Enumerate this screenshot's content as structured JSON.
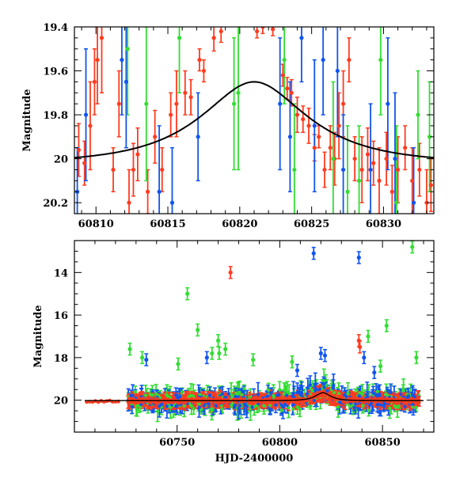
{
  "chart_data": [
    {
      "type": "scatter",
      "panel": "top",
      "title": "",
      "xlabel": "",
      "ylabel": "Magnitude",
      "xlim": [
        60808.5,
        60833.5
      ],
      "ylim": [
        20.25,
        19.4
      ],
      "y_inverted": true,
      "xticks": [
        60810,
        60815,
        60820,
        60825,
        60830
      ],
      "yticks": [
        19.4,
        19.6,
        19.8,
        20,
        20.2
      ],
      "grid": false,
      "colors": {
        "red": "#ff3b1f",
        "green": "#33dd33",
        "blue": "#1155ee",
        "model": "#000000"
      },
      "model_curve": {
        "name": "",
        "baseline": 20.02,
        "peak_mag": 19.65,
        "peak_time": 60821.0,
        "shape": "Paczynski",
        "tE": 6.0
      },
      "series": [
        {
          "color": "red",
          "points": [
            [
              60808.8,
              19.96,
              0.12
            ],
            [
              60809.2,
              20.02,
              0.1
            ],
            [
              60809.6,
              19.85,
              0.2
            ],
            [
              60809.9,
              19.65,
              0.15
            ],
            [
              60810.1,
              19.55,
              0.2
            ],
            [
              60810.4,
              19.45,
              0.25
            ],
            [
              60811.2,
              20.05,
              0.1
            ],
            [
              60811.6,
              19.75,
              0.15
            ],
            [
              60812.3,
              20.2,
              0.15
            ],
            [
              60812.6,
              20.05,
              0.12
            ],
            [
              60812.9,
              19.98,
              0.12
            ],
            [
              60813.6,
              20.15,
              0.1
            ],
            [
              60814.1,
              19.9,
              0.12
            ],
            [
              60814.6,
              20.05,
              0.1
            ],
            [
              60815.2,
              19.8,
              0.1
            ],
            [
              60815.6,
              19.75,
              0.15
            ],
            [
              60816.2,
              19.7,
              0.1
            ],
            [
              60816.6,
              19.72,
              0.08
            ],
            [
              60817.2,
              19.55,
              0.05
            ],
            [
              60817.5,
              19.6,
              0.05
            ],
            [
              60818.2,
              19.45,
              0.06
            ],
            [
              60818.7,
              19.42,
              0.05
            ],
            [
              60821.2,
              19.42,
              0.03
            ],
            [
              60821.6,
              19.4,
              0.03
            ],
            [
              60822.3,
              19.41,
              0.03
            ],
            [
              60823.0,
              19.62,
              0.05
            ],
            [
              60823.3,
              19.68,
              0.05
            ],
            [
              60823.6,
              19.7,
              0.06
            ],
            [
              60824.0,
              19.8,
              0.08
            ],
            [
              60824.4,
              19.82,
              0.06
            ],
            [
              60824.8,
              19.85,
              0.08
            ],
            [
              60825.2,
              19.95,
              0.06
            ],
            [
              60825.5,
              19.9,
              0.05
            ],
            [
              60825.9,
              20.05,
              0.08
            ],
            [
              60826.3,
              19.95,
              0.1
            ],
            [
              60826.6,
              20.0,
              0.12
            ],
            [
              60826.9,
              19.85,
              0.15
            ],
            [
              60827.2,
              19.75,
              0.15
            ],
            [
              60827.6,
              19.55,
              0.1
            ],
            [
              60828.0,
              20.0,
              0.1
            ],
            [
              60828.5,
              20.05,
              0.15
            ],
            [
              60828.9,
              19.98,
              0.12
            ],
            [
              60829.3,
              20.02,
              0.1
            ],
            [
              60829.7,
              20.1,
              0.15
            ],
            [
              60830.2,
              20.0,
              0.12
            ],
            [
              60830.6,
              20.15,
              0.12
            ],
            [
              60831.0,
              20.05,
              0.15
            ],
            [
              60831.5,
              19.95,
              0.1
            ],
            [
              60832.0,
              20.1,
              0.15
            ],
            [
              60832.5,
              20.05,
              0.12
            ],
            [
              60833.0,
              20.2,
              0.15
            ],
            [
              60833.3,
              20.12,
              0.12
            ]
          ]
        },
        {
          "color": "green",
          "points": [
            [
              60812.2,
              19.5,
              0.3
            ],
            [
              60813.5,
              19.75,
              0.35
            ],
            [
              60815.8,
              19.45,
              0.25
            ],
            [
              60819.6,
              19.75,
              0.3
            ],
            [
              60819.9,
              19.7,
              0.35
            ],
            [
              60823.1,
              19.55,
              0.2
            ],
            [
              60823.8,
              20.05,
              0.3
            ],
            [
              60826.5,
              20.0,
              0.35
            ],
            [
              60827.5,
              20.15,
              0.3
            ],
            [
              60828.3,
              20.1,
              0.25
            ],
            [
              60829.8,
              19.55,
              0.25
            ],
            [
              60830.9,
              20.2,
              0.35
            ],
            [
              60832.4,
              19.8,
              0.2
            ],
            [
              60833.2,
              19.9,
              0.25
            ]
          ]
        },
        {
          "color": "blue",
          "points": [
            [
              60808.7,
              20.15,
              0.2
            ],
            [
              60809.3,
              19.8,
              0.3
            ],
            [
              60811.8,
              19.55,
              0.25
            ],
            [
              60812.1,
              19.65,
              0.3
            ],
            [
              60814.4,
              20.15,
              0.3
            ],
            [
              60815.3,
              20.2,
              0.25
            ],
            [
              60817.1,
              19.9,
              0.2
            ],
            [
              60822.8,
              19.75,
              0.3
            ],
            [
              60823.5,
              19.9,
              0.25
            ],
            [
              60824.3,
              19.45,
              0.2
            ],
            [
              60825.2,
              19.85,
              0.3
            ],
            [
              60825.8,
              19.55,
              0.25
            ],
            [
              60826.8,
              19.6,
              0.3
            ],
            [
              60827.2,
              20.05,
              0.25
            ],
            [
              60829.1,
              20.05,
              0.3
            ],
            [
              60830.3,
              19.75,
              0.3
            ],
            [
              60830.8,
              20.0,
              0.3
            ],
            [
              60832.1,
              20.2,
              0.25
            ]
          ]
        }
      ]
    },
    {
      "type": "scatter",
      "panel": "bottom",
      "title": "",
      "xlabel": "HJD-2400000",
      "ylabel": "Magnitude",
      "xlim": [
        60700,
        60875
      ],
      "ylim": [
        21.5,
        12.5
      ],
      "y_inverted": true,
      "xticks": [
        60750,
        60800,
        60850
      ],
      "yticks": [
        14,
        16,
        18,
        20
      ],
      "grid": false,
      "model_curve": {
        "name": "",
        "baseline": 20.02,
        "peak_mag": 19.65,
        "peak_time": 60821.0,
        "shape": "Paczynski",
        "tE": 6.0
      },
      "outliers": [
        {
          "color": "blue",
          "x": 60816.5,
          "y": 13.1
        },
        {
          "color": "blue",
          "x": 60838.5,
          "y": 13.3
        },
        {
          "color": "green",
          "x": 60864.5,
          "y": 12.8
        },
        {
          "color": "red",
          "x": 60776.0,
          "y": 14.0
        },
        {
          "color": "green",
          "x": 60755.0,
          "y": 15.0
        },
        {
          "color": "green",
          "x": 60727.0,
          "y": 17.6
        },
        {
          "color": "green",
          "x": 60733.0,
          "y": 18.0
        },
        {
          "color": "blue",
          "x": 60735.0,
          "y": 18.1
        },
        {
          "color": "green",
          "x": 60750.5,
          "y": 18.3
        },
        {
          "color": "green",
          "x": 60760.0,
          "y": 16.7
        },
        {
          "color": "green",
          "x": 60770.0,
          "y": 17.2
        },
        {
          "color": "green",
          "x": 60770.5,
          "y": 17.8
        },
        {
          "color": "green",
          "x": 60773.5,
          "y": 17.6
        },
        {
          "color": "blue",
          "x": 60764.5,
          "y": 18.0
        },
        {
          "color": "green",
          "x": 60767.0,
          "y": 17.8
        },
        {
          "color": "green",
          "x": 60787.0,
          "y": 18.1
        },
        {
          "color": "green",
          "x": 60806.0,
          "y": 18.2
        },
        {
          "color": "blue",
          "x": 60820.0,
          "y": 17.8
        },
        {
          "color": "blue",
          "x": 60822.0,
          "y": 17.9
        },
        {
          "color": "red",
          "x": 60838.5,
          "y": 17.2
        },
        {
          "color": "red",
          "x": 60839.0,
          "y": 17.5
        },
        {
          "color": "green",
          "x": 60843.0,
          "y": 17.0
        },
        {
          "color": "blue",
          "x": 60841.0,
          "y": 18.0
        },
        {
          "color": "green",
          "x": 60849.0,
          "y": 18.4
        },
        {
          "color": "green",
          "x": 60852.0,
          "y": 16.5
        },
        {
          "color": "blue",
          "x": 60846.0,
          "y": 18.7
        },
        {
          "color": "green",
          "x": 60866.5,
          "y": 18.0
        },
        {
          "color": "blue",
          "x": 60808.5,
          "y": 18.6
        }
      ]
    }
  ]
}
